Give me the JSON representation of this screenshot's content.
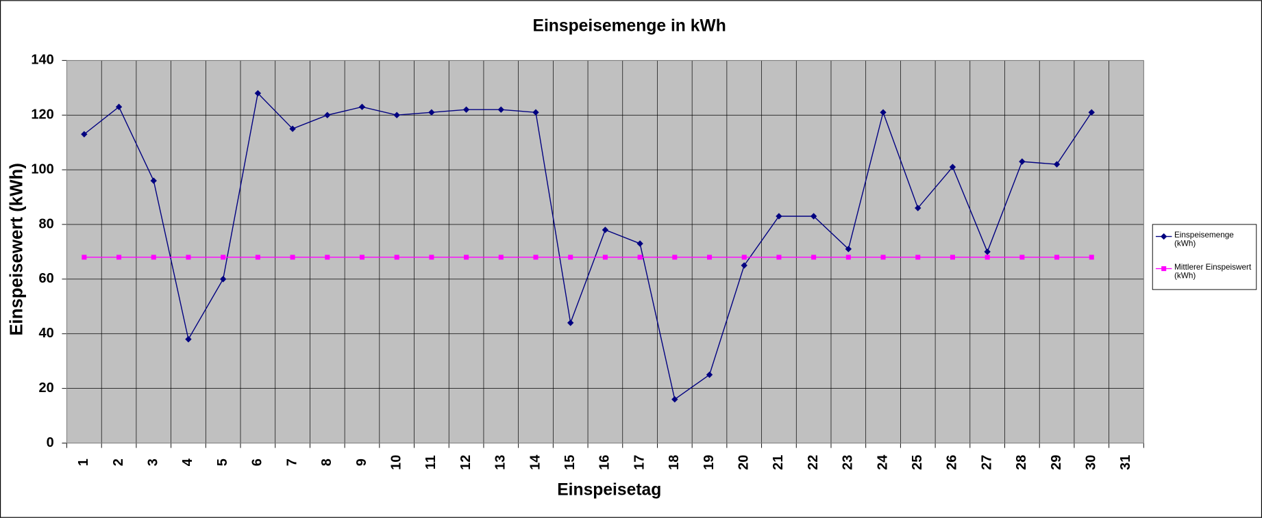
{
  "chart_data": {
    "type": "line",
    "title": "Einspeisemenge in kWh",
    "x_label": "Einspeisetag",
    "y_label": "Einspeisewert  (kWh)",
    "categories": [
      "1",
      "2",
      "3",
      "4",
      "5",
      "6",
      "7",
      "8",
      "9",
      "10",
      "11",
      "12",
      "13",
      "14",
      "15",
      "16",
      "17",
      "18",
      "19",
      "20",
      "21",
      "22",
      "23",
      "24",
      "25",
      "26",
      "27",
      "28",
      "29",
      "30",
      "31"
    ],
    "series": [
      {
        "name": "Einspeisemenge (kWh)",
        "color": "#000080",
        "marker": "diamond",
        "values": [
          113,
          123,
          96,
          38,
          60,
          128,
          115,
          120,
          123,
          120,
          121,
          122,
          122,
          121,
          44,
          78,
          73,
          16,
          25,
          65,
          83,
          83,
          71,
          121,
          86,
          101,
          70,
          103,
          102,
          121,
          null
        ]
      },
      {
        "name": "Mittlerer Einspeiswert (kWh)",
        "color": "#ff00ff",
        "marker": "square",
        "values": [
          68,
          68,
          68,
          68,
          68,
          68,
          68,
          68,
          68,
          68,
          68,
          68,
          68,
          68,
          68,
          68,
          68,
          68,
          68,
          68,
          68,
          68,
          68,
          68,
          68,
          68,
          68,
          68,
          68,
          68,
          null
        ]
      }
    ],
    "ylim": [
      0,
      140
    ],
    "yticks": [
      0,
      20,
      40,
      60,
      80,
      100,
      120,
      140
    ],
    "grid": true,
    "legend": "right"
  }
}
